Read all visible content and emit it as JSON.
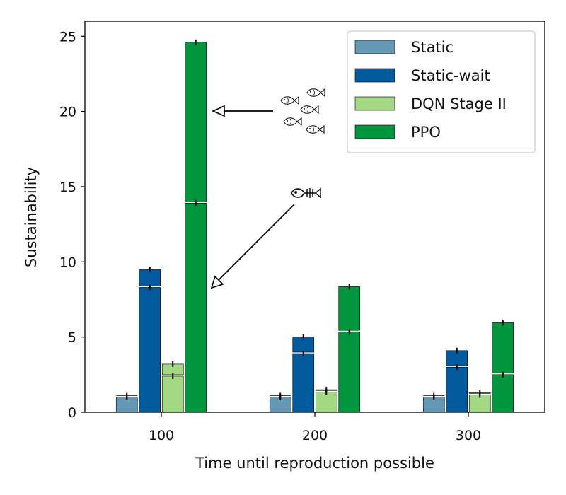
{
  "chart_data": {
    "type": "bar",
    "stacked_segments": true,
    "xlabel": "Time until reproduction possible",
    "ylabel": "Sustainability",
    "categories": [
      "100",
      "200",
      "300"
    ],
    "ylim": [
      0,
      26
    ],
    "yticks": [
      0,
      5,
      10,
      15,
      20,
      25
    ],
    "grid": false,
    "legend_position": "top-right",
    "series": [
      {
        "name": "Static",
        "color": "#6598b4",
        "lower": [
          1.0,
          1.0,
          1.0
        ],
        "upper": [
          1.1,
          1.1,
          1.1
        ]
      },
      {
        "name": "Static-wait",
        "color": "#005a9c",
        "lower": [
          8.3,
          3.9,
          3.0
        ],
        "upper": [
          9.5,
          5.0,
          4.1
        ]
      },
      {
        "name": "DQN Stage II",
        "color": "#a2d982",
        "lower": [
          2.4,
          1.35,
          1.15
        ],
        "upper": [
          3.2,
          1.5,
          1.3
        ]
      },
      {
        "name": "PPO",
        "color": "#00963e",
        "lower": [
          13.9,
          5.35,
          2.5
        ],
        "upper": [
          24.6,
          8.35,
          5.95
        ]
      }
    ],
    "annotations": [
      {
        "icon": "fish-school-icon",
        "points_to": "PPO upper segment at 100"
      },
      {
        "icon": "fish-skeleton-icon",
        "points_to": "PPO lower segment at 100"
      }
    ]
  }
}
